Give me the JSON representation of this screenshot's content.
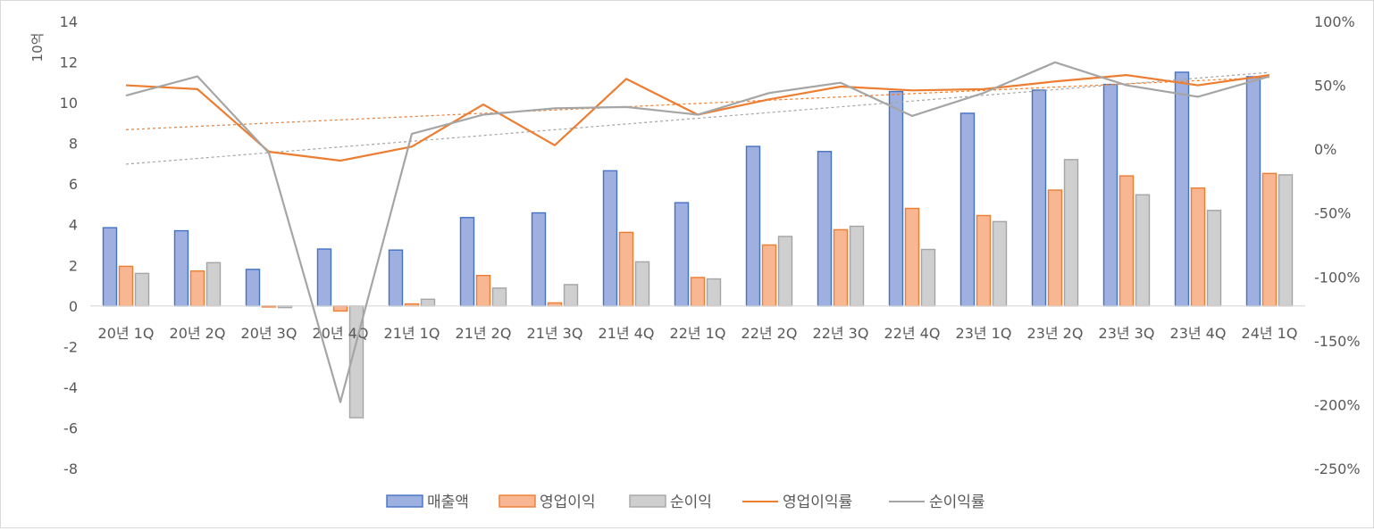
{
  "chart_data": {
    "type": "bar",
    "unit_label": "10억",
    "categories": [
      "20년 1Q",
      "20년 2Q",
      "20년 3Q",
      "20년 4Q",
      "21년 1Q",
      "21년 2Q",
      "21년 3Q",
      "21년 4Q",
      "22년 1Q",
      "22년 2Q",
      "22년 3Q",
      "22년 4Q",
      "23년 1Q",
      "23년 2Q",
      "23년 3Q",
      "23년 4Q",
      "24년 1Q"
    ],
    "series": [
      {
        "name": "매출액",
        "type": "bar",
        "axis": "left",
        "values": [
          3.85,
          3.7,
          1.8,
          2.8,
          2.75,
          4.35,
          4.58,
          6.65,
          5.08,
          7.85,
          7.6,
          10.55,
          9.48,
          10.62,
          10.9,
          11.5,
          11.28
        ]
      },
      {
        "name": "영업이익",
        "type": "bar",
        "axis": "left",
        "values": [
          1.95,
          1.72,
          -0.05,
          -0.25,
          0.1,
          1.5,
          0.15,
          3.62,
          1.4,
          3.0,
          3.75,
          4.8,
          4.45,
          5.7,
          6.4,
          5.8,
          6.52
        ]
      },
      {
        "name": "순이익",
        "type": "bar",
        "axis": "left",
        "values": [
          1.6,
          2.13,
          -0.08,
          -5.5,
          0.33,
          0.88,
          1.05,
          2.17,
          1.33,
          3.42,
          3.92,
          2.78,
          4.15,
          7.2,
          5.47,
          4.7,
          6.45
        ]
      },
      {
        "name": "영업이익률",
        "type": "line",
        "axis": "right",
        "values": [
          50,
          47,
          -2,
          -9,
          2,
          35,
          3,
          55,
          27,
          39,
          49,
          46,
          47,
          53,
          58,
          50,
          58
        ]
      },
      {
        "name": "순이익률",
        "type": "line",
        "axis": "right",
        "values": [
          42,
          57,
          -3,
          -198,
          12,
          27,
          32,
          33,
          27,
          44,
          52,
          26,
          44,
          68,
          50,
          41,
          57
        ]
      }
    ],
    "left_axis": {
      "min": -8,
      "max": 14,
      "ticks": [
        -8,
        -6,
        -4,
        -2,
        0,
        2,
        4,
        6,
        8,
        10,
        12,
        14
      ]
    },
    "right_axis": {
      "min": -250,
      "max": 100,
      "ticks": [
        "-250%",
        "-200%",
        "-150%",
        "-100%",
        "-50%",
        "0%",
        "50%",
        "100%"
      ]
    },
    "trendlines": true,
    "grid": false,
    "legend_position": "bottom",
    "colors": {
      "revenue_fill": "#9db0e0",
      "revenue_stroke": "#4472c4",
      "op_fill": "#f8b692",
      "op_stroke": "#ed7d31",
      "net_fill": "#cfcfcf",
      "net_stroke": "#a5a5a5",
      "op_margin_line": "#ed7d31",
      "net_margin_line": "#a5a5a5",
      "axis": "#d9d9d9",
      "text": "#595959"
    }
  }
}
